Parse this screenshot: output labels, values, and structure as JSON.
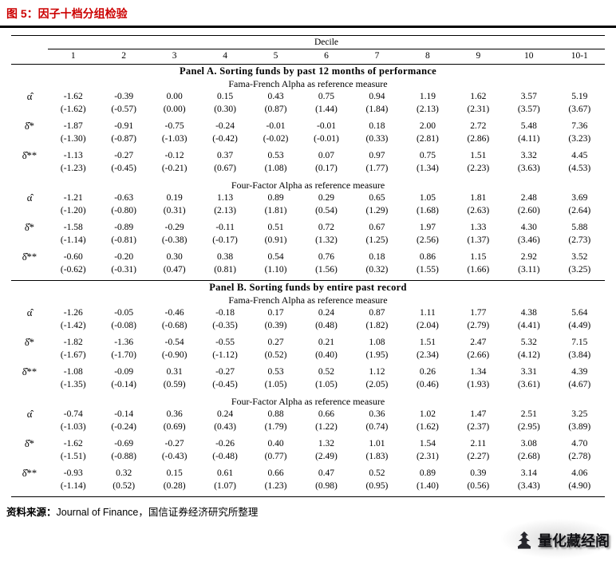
{
  "page": {
    "title": "图 5：因子十档分组检验",
    "source_prefix": "资料来源：",
    "source_text": "Journal of Finance，国信证券经济研究所整理",
    "title_color": "#cc0000"
  },
  "watermark": {
    "text": "量化藏经阁"
  },
  "table": {
    "decile_label": "Decile",
    "columns": [
      "1",
      "2",
      "3",
      "4",
      "5",
      "6",
      "7",
      "8",
      "9",
      "10",
      "10-1"
    ],
    "panels": [
      {
        "title": "Panel A. Sorting funds by past 12 months of performance",
        "sections": [
          {
            "title": "Fama-French Alpha as reference measure",
            "rows": [
              {
                "label": "α̂",
                "values": [
                  "-1.62",
                  "-0.39",
                  "0.00",
                  "0.15",
                  "0.43",
                  "0.75",
                  "0.94",
                  "1.19",
                  "1.62",
                  "3.57",
                  "5.19"
                ],
                "tstats": [
                  "(-1.62)",
                  "(-0.57)",
                  "(0.00)",
                  "(0.30)",
                  "(0.87)",
                  "(1.44)",
                  "(1.84)",
                  "(2.13)",
                  "(2.31)",
                  "(3.57)",
                  "(3.67)"
                ]
              },
              {
                "label": "δ̂*",
                "values": [
                  "-1.87",
                  "-0.91",
                  "-0.75",
                  "-0.24",
                  "-0.01",
                  "-0.01",
                  "0.18",
                  "2.00",
                  "2.72",
                  "5.48",
                  "7.36"
                ],
                "tstats": [
                  "(-1.30)",
                  "(-0.87)",
                  "(-1.03)",
                  "(-0.42)",
                  "(-0.02)",
                  "(-0.01)",
                  "(0.33)",
                  "(2.81)",
                  "(2.86)",
                  "(4.11)",
                  "(3.23)"
                ]
              },
              {
                "label": "δ̂**",
                "values": [
                  "-1.13",
                  "-0.27",
                  "-0.12",
                  "0.37",
                  "0.53",
                  "0.07",
                  "0.97",
                  "0.75",
                  "1.51",
                  "3.32",
                  "4.45"
                ],
                "tstats": [
                  "(-1.23)",
                  "(-0.45)",
                  "(-0.21)",
                  "(0.67)",
                  "(1.08)",
                  "(0.17)",
                  "(1.77)",
                  "(1.34)",
                  "(2.23)",
                  "(3.63)",
                  "(4.53)"
                ]
              }
            ]
          },
          {
            "title": "Four-Factor Alpha as reference measure",
            "rows": [
              {
                "label": "α̂",
                "values": [
                  "-1.21",
                  "-0.63",
                  "0.19",
                  "1.13",
                  "0.89",
                  "0.29",
                  "0.65",
                  "1.05",
                  "1.81",
                  "2.48",
                  "3.69"
                ],
                "tstats": [
                  "(-1.20)",
                  "(-0.80)",
                  "(0.31)",
                  "(2.13)",
                  "(1.81)",
                  "(0.54)",
                  "(1.29)",
                  "(1.68)",
                  "(2.63)",
                  "(2.60)",
                  "(2.64)"
                ]
              },
              {
                "label": "δ̂*",
                "values": [
                  "-1.58",
                  "-0.89",
                  "-0.29",
                  "-0.11",
                  "0.51",
                  "0.72",
                  "0.67",
                  "1.97",
                  "1.33",
                  "4.30",
                  "5.88"
                ],
                "tstats": [
                  "(-1.14)",
                  "(-0.81)",
                  "(-0.38)",
                  "(-0.17)",
                  "(0.91)",
                  "(1.32)",
                  "(1.25)",
                  "(2.56)",
                  "(1.37)",
                  "(3.46)",
                  "(2.73)"
                ]
              },
              {
                "label": "δ̂**",
                "values": [
                  "-0.60",
                  "-0.20",
                  "0.30",
                  "0.38",
                  "0.54",
                  "0.76",
                  "0.18",
                  "0.86",
                  "1.15",
                  "2.92",
                  "3.52"
                ],
                "tstats": [
                  "(-0.62)",
                  "(-0.31)",
                  "(0.47)",
                  "(0.81)",
                  "(1.10)",
                  "(1.56)",
                  "(0.32)",
                  "(1.55)",
                  "(1.66)",
                  "(3.11)",
                  "(3.25)"
                ]
              }
            ]
          }
        ]
      },
      {
        "title": "Panel B. Sorting funds by entire past record",
        "sections": [
          {
            "title": "Fama-French Alpha as reference measure",
            "rows": [
              {
                "label": "α̂",
                "values": [
                  "-1.26",
                  "-0.05",
                  "-0.46",
                  "-0.18",
                  "0.17",
                  "0.24",
                  "0.87",
                  "1.11",
                  "1.77",
                  "4.38",
                  "5.64"
                ],
                "tstats": [
                  "(-1.42)",
                  "(-0.08)",
                  "(-0.68)",
                  "(-0.35)",
                  "(0.39)",
                  "(0.48)",
                  "(1.82)",
                  "(2.04)",
                  "(2.79)",
                  "(4.41)",
                  "(4.49)"
                ]
              },
              {
                "label": "δ̂*",
                "values": [
                  "-1.82",
                  "-1.36",
                  "-0.54",
                  "-0.55",
                  "0.27",
                  "0.21",
                  "1.08",
                  "1.51",
                  "2.47",
                  "5.32",
                  "7.15"
                ],
                "tstats": [
                  "(-1.67)",
                  "(-1.70)",
                  "(-0.90)",
                  "(-1.12)",
                  "(0.52)",
                  "(0.40)",
                  "(1.95)",
                  "(2.34)",
                  "(2.66)",
                  "(4.12)",
                  "(3.84)"
                ]
              },
              {
                "label": "δ̂**",
                "values": [
                  "-1.08",
                  "-0.09",
                  "0.31",
                  "-0.27",
                  "0.53",
                  "0.52",
                  "1.12",
                  "0.26",
                  "1.34",
                  "3.31",
                  "4.39"
                ],
                "tstats": [
                  "(-1.35)",
                  "(-0.14)",
                  "(0.59)",
                  "(-0.45)",
                  "(1.05)",
                  "(1.05)",
                  "(2.05)",
                  "(0.46)",
                  "(1.93)",
                  "(3.61)",
                  "(4.67)"
                ]
              }
            ]
          },
          {
            "title": "Four-Factor Alpha as reference measure",
            "rows": [
              {
                "label": "α̂",
                "values": [
                  "-0.74",
                  "-0.14",
                  "0.36",
                  "0.24",
                  "0.88",
                  "0.66",
                  "0.36",
                  "1.02",
                  "1.47",
                  "2.51",
                  "3.25"
                ],
                "tstats": [
                  "(-1.03)",
                  "(-0.24)",
                  "(0.69)",
                  "(0.43)",
                  "(1.79)",
                  "(1.22)",
                  "(0.74)",
                  "(1.62)",
                  "(2.37)",
                  "(2.95)",
                  "(3.89)"
                ]
              },
              {
                "label": "δ̂*",
                "values": [
                  "-1.62",
                  "-0.69",
                  "-0.27",
                  "-0.26",
                  "0.40",
                  "1.32",
                  "1.01",
                  "1.54",
                  "2.11",
                  "3.08",
                  "4.70"
                ],
                "tstats": [
                  "(-1.51)",
                  "(-0.88)",
                  "(-0.43)",
                  "(-0.48)",
                  "(0.77)",
                  "(2.49)",
                  "(1.83)",
                  "(2.31)",
                  "(2.27)",
                  "(2.68)",
                  "(2.78)"
                ]
              },
              {
                "label": "δ̂**",
                "values": [
                  "-0.93",
                  "0.32",
                  "0.15",
                  "0.61",
                  "0.66",
                  "0.47",
                  "0.52",
                  "0.89",
                  "0.39",
                  "3.14",
                  "4.06"
                ],
                "tstats": [
                  "(-1.14)",
                  "(0.52)",
                  "(0.28)",
                  "(1.07)",
                  "(1.23)",
                  "(0.98)",
                  "(0.95)",
                  "(1.40)",
                  "(0.56)",
                  "(3.43)",
                  "(4.90)"
                ]
              }
            ]
          }
        ]
      }
    ]
  }
}
